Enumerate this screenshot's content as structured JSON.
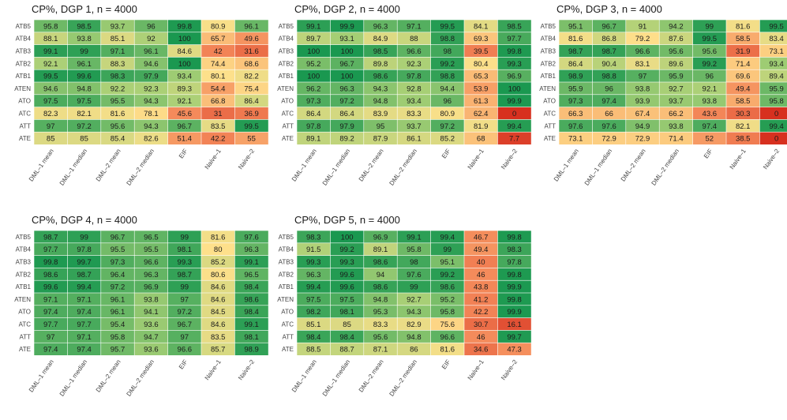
{
  "chart_data": [
    {
      "type": "heatmap",
      "title": "CP%, DGP 1, n = 4000",
      "rows": [
        "ATB5",
        "ATB4",
        "ATB3",
        "ATB2",
        "ATB1",
        "ATEN",
        "ATO",
        "ATC",
        "ATT",
        "ATE"
      ],
      "columns": [
        "DML–1 mean",
        "DML–1 median",
        "DML–2 mean",
        "DML–2 median",
        "EIF",
        "Naive–1",
        "Naive–2"
      ],
      "values": [
        [
          95.8,
          98.5,
          93.7,
          96,
          99.8,
          80.9,
          96.1
        ],
        [
          88.1,
          93.8,
          85.1,
          92,
          100,
          65.7,
          49.6
        ],
        [
          99.1,
          99,
          97.1,
          96.1,
          84.6,
          42,
          31.6
        ],
        [
          92.1,
          96.1,
          88.3,
          94.6,
          100,
          74.4,
          68.6
        ],
        [
          99.5,
          99.6,
          98.3,
          97.9,
          93.4,
          80.1,
          82.2
        ],
        [
          94.6,
          94.8,
          92.2,
          92.3,
          89.3,
          54.4,
          75.4
        ],
        [
          97.5,
          97.5,
          95.5,
          94.3,
          92.1,
          66.8,
          86.4
        ],
        [
          82.3,
          82.1,
          81.6,
          78.1,
          45.6,
          31,
          36.9
        ],
        [
          97,
          97.2,
          95.6,
          94.3,
          96.7,
          83.5,
          99.5
        ],
        [
          85,
          85,
          85.4,
          82.6,
          51.4,
          42.2,
          55
        ]
      ]
    },
    {
      "type": "heatmap",
      "title": "CP%, DGP 2, n = 4000",
      "rows": [
        "ATB5",
        "ATB4",
        "ATB3",
        "ATB2",
        "ATB1",
        "ATEN",
        "ATO",
        "ATC",
        "ATT",
        "ATE"
      ],
      "columns": [
        "DML–1 mean",
        "DML–1 median",
        "DML–2 mean",
        "DML–2 median",
        "EIF",
        "Naive–1",
        "Naive–2"
      ],
      "values": [
        [
          99.1,
          99.9,
          96.3,
          97.1,
          99.5,
          84.1,
          98.5
        ],
        [
          89.7,
          93.1,
          84.9,
          88,
          98.8,
          69.3,
          97.7
        ],
        [
          100,
          100,
          98.5,
          96.6,
          98,
          39.5,
          99.8
        ],
        [
          95.2,
          96.7,
          89.8,
          92.3,
          99.2,
          80.4,
          99.3
        ],
        [
          100,
          100,
          98.6,
          97.8,
          98.8,
          65.3,
          96.9
        ],
        [
          96.2,
          96.3,
          94.3,
          92.8,
          94.4,
          53.9,
          100
        ],
        [
          97.3,
          97.2,
          94.8,
          93.4,
          96,
          61.3,
          99.9
        ],
        [
          86.4,
          86.4,
          83.9,
          83.3,
          80.9,
          62.4,
          0
        ],
        [
          97.8,
          97.9,
          95,
          93.7,
          97.2,
          81.9,
          99.4
        ],
        [
          89.1,
          89.2,
          87.9,
          86.1,
          85.2,
          68,
          7.7
        ]
      ]
    },
    {
      "type": "heatmap",
      "title": "CP%, DGP 3, n = 4000",
      "rows": [
        "ATB5",
        "ATB4",
        "ATB3",
        "ATB2",
        "ATB1",
        "ATEN",
        "ATO",
        "ATC",
        "ATT",
        "ATE"
      ],
      "columns": [
        "DML–1 mean",
        "DML–1 median",
        "DML–2 mean",
        "DML–2 median",
        "EIF",
        "Naive–1",
        "Naive–2"
      ],
      "values": [
        [
          95.1,
          96.7,
          91,
          94.2,
          99,
          81.6,
          99.5
        ],
        [
          81.6,
          86.8,
          79.2,
          87.6,
          99.5,
          58.5,
          83.4
        ],
        [
          98.7,
          98.7,
          96.6,
          95.6,
          95.6,
          31.9,
          73.1
        ],
        [
          86.4,
          90.4,
          83.1,
          89.6,
          99.2,
          71.4,
          93.4
        ],
        [
          98.9,
          98.8,
          97,
          95.9,
          96,
          69.6,
          89.4
        ],
        [
          95.9,
          96,
          93.8,
          92.7,
          92.1,
          49.4,
          95.9
        ],
        [
          97.3,
          97.4,
          93.9,
          93.7,
          93.8,
          58.5,
          95.8
        ],
        [
          66.3,
          66,
          67.4,
          66.2,
          43.6,
          30.3,
          0
        ],
        [
          97.6,
          97.6,
          94.9,
          93.8,
          97.4,
          82.1,
          99.4
        ],
        [
          73.1,
          72.9,
          72.9,
          71.4,
          52,
          38.5,
          0
        ]
      ]
    },
    {
      "type": "heatmap",
      "title": "CP%, DGP 4, n = 4000",
      "rows": [
        "ATB5",
        "ATB4",
        "ATB3",
        "ATB2",
        "ATB1",
        "ATEN",
        "ATO",
        "ATC",
        "ATT",
        "ATE"
      ],
      "columns": [
        "DML–1 mean",
        "DML–1 median",
        "DML–2 mean",
        "DML–2 median",
        "EIF",
        "Naive–1",
        "Naive–2"
      ],
      "values": [
        [
          98.7,
          99,
          96.7,
          96.5,
          99,
          81.6,
          97.6
        ],
        [
          97.7,
          97.8,
          95.5,
          95.5,
          98.1,
          80,
          96.3
        ],
        [
          99.8,
          99.7,
          97.3,
          96.6,
          99.3,
          85.2,
          99.1
        ],
        [
          98.6,
          98.7,
          96.4,
          96.3,
          98.7,
          80.6,
          96.5
        ],
        [
          99.6,
          99.4,
          97.2,
          96.9,
          99,
          84.6,
          98.4
        ],
        [
          97.1,
          97.1,
          96.1,
          93.8,
          97,
          84.6,
          98.6
        ],
        [
          97.4,
          97.4,
          96.1,
          94.1,
          97.2,
          84.5,
          98.4
        ],
        [
          97.7,
          97.7,
          95.4,
          93.6,
          96.7,
          84.6,
          99.1
        ],
        [
          97,
          97.1,
          95.8,
          94.7,
          97,
          83.5,
          98.1
        ],
        [
          97.4,
          97.4,
          95.7,
          93.6,
          96.6,
          85.7,
          98.9
        ]
      ]
    },
    {
      "type": "heatmap",
      "title": "CP%, DGP 5, n = 4000",
      "rows": [
        "ATB5",
        "ATB4",
        "ATB3",
        "ATB2",
        "ATB1",
        "ATEN",
        "ATO",
        "ATC",
        "ATT",
        "ATE"
      ],
      "columns": [
        "DML–1 mean",
        "DML–1 median",
        "DML–2 mean",
        "DML–2 median",
        "EIF",
        "Naive–1",
        "Naive–2"
      ],
      "values": [
        [
          98.3,
          100,
          96.9,
          99.1,
          99.4,
          46.7,
          99.8
        ],
        [
          91.5,
          99.2,
          89.1,
          95.8,
          99,
          49.4,
          98.3
        ],
        [
          99.3,
          99.3,
          98.6,
          98,
          95.1,
          40,
          97.8
        ],
        [
          96.3,
          99.6,
          94,
          97.6,
          99.2,
          46,
          99.8
        ],
        [
          99.4,
          99.6,
          98.6,
          99,
          98.6,
          43.8,
          99.9
        ],
        [
          97.5,
          97.5,
          94.8,
          92.7,
          95.2,
          41.2,
          99.8
        ],
        [
          98.2,
          98.1,
          95.3,
          94.3,
          95.8,
          42.2,
          99.9
        ],
        [
          85.1,
          85,
          83.3,
          82.9,
          75.6,
          30.7,
          16.1
        ],
        [
          98.4,
          98.4,
          95.6,
          94.8,
          96.6,
          46,
          99.7
        ],
        [
          88.5,
          88.7,
          87.1,
          86,
          81.6,
          34.6,
          47.3
        ]
      ]
    }
  ],
  "colors": {
    "scale_low": "#d7301f",
    "scale_mid_low": "#f4895a",
    "scale_mid": "#fee08b",
    "scale_mid_high": "#a6cf75",
    "scale_high": "#1a9850",
    "text": "#1a1a1a",
    "axis_text": "#444444"
  }
}
